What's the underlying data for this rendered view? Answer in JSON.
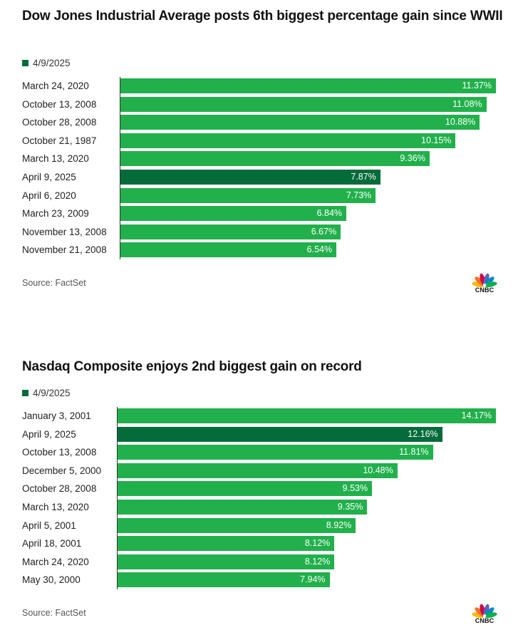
{
  "charts": [
    {
      "title": "Dow Jones Industrial Average posts 6th biggest percentage gain since WWII",
      "legend_label": "4/9/2025",
      "source": "Source: FactSet",
      "logo_text": "CNBC"
    },
    {
      "title": "Nasdaq Composite enjoys 2nd biggest gain on record",
      "legend_label": "4/9/2025",
      "source": "Source: FactSet",
      "logo_text": "CNBC"
    }
  ],
  "colors": {
    "bar": "#21b04b",
    "highlight": "#046b3a",
    "logo_peacock": [
      "#fcb711",
      "#f37021",
      "#cc004c",
      "#6460aa",
      "#0089d0",
      "#0db14b"
    ]
  },
  "chart_data": [
    {
      "type": "bar",
      "orientation": "horizontal",
      "title": "Dow Jones Industrial Average posts 6th biggest percentage gain since WWII",
      "categories": [
        "March 24, 2020",
        "October 13, 2008",
        "October 28, 2008",
        "October 21, 1987",
        "March 13, 2020",
        "April 9, 2025",
        "April 6, 2020",
        "March 23, 2009",
        "November 13, 2008",
        "November 21, 2008"
      ],
      "values": [
        11.37,
        11.08,
        10.88,
        10.15,
        9.36,
        7.87,
        7.73,
        6.84,
        6.67,
        6.54
      ],
      "value_labels": [
        "11.37%",
        "11.08%",
        "10.88%",
        "10.15%",
        "9.36%",
        "7.87%",
        "7.73%",
        "6.84%",
        "6.67%",
        "6.54%"
      ],
      "highlight_index": 5,
      "legend": [
        "4/9/2025"
      ],
      "xlim": [
        0,
        11.37
      ],
      "grid": false
    },
    {
      "type": "bar",
      "orientation": "horizontal",
      "title": "Nasdaq Composite enjoys 2nd biggest gain on record",
      "categories": [
        "January 3, 2001",
        "April 9, 2025",
        "October 13, 2008",
        "December 5, 2000",
        "October 28, 2008",
        "March 13, 2020",
        "April 5, 2001",
        "April 18, 2001",
        "March 24, 2020",
        "May 30, 2000"
      ],
      "values": [
        14.17,
        12.16,
        11.81,
        10.48,
        9.53,
        9.35,
        8.92,
        8.12,
        8.12,
        7.94
      ],
      "value_labels": [
        "14.17%",
        "12.16%",
        "11.81%",
        "10.48%",
        "9.53%",
        "9.35%",
        "8.92%",
        "8.12%",
        "8.12%",
        "7.94%"
      ],
      "highlight_index": 1,
      "legend": [
        "4/9/2025"
      ],
      "xlim": [
        0,
        14.17
      ],
      "grid": false
    }
  ]
}
